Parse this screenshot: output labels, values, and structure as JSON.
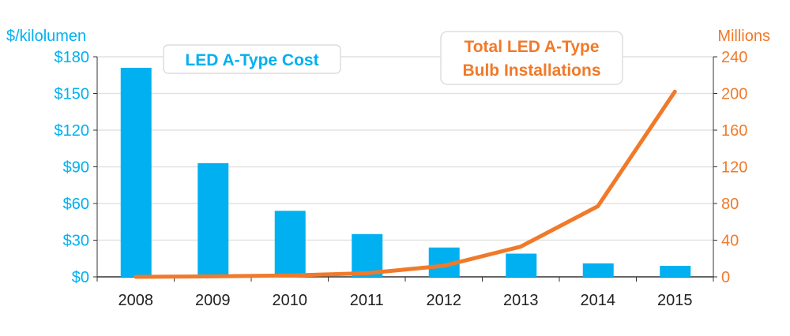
{
  "chart_data": {
    "type": "bar+line",
    "categories": [
      "2008",
      "2009",
      "2010",
      "2011",
      "2012",
      "2013",
      "2014",
      "2015"
    ],
    "series": [
      {
        "name": "LED A-Type Cost",
        "type": "bar",
        "axis": "left",
        "color": "#00B0F0",
        "values": [
          171,
          93,
          54,
          35,
          24,
          19,
          11,
          9
        ]
      },
      {
        "name": "Total LED A-Type Bulb Installations",
        "type": "line",
        "axis": "right",
        "color": "#F07A2A",
        "values": [
          0,
          0.5,
          1.5,
          4,
          12,
          33,
          77,
          202
        ]
      }
    ],
    "left_axis": {
      "label": "$/kilolumen",
      "range": [
        0,
        180
      ],
      "ticks": [
        "$0",
        "$30",
        "$60",
        "$90",
        "$120",
        "$150",
        "$180"
      ],
      "color": "#00B0F0"
    },
    "right_axis": {
      "label": "Millions",
      "range": [
        0,
        240
      ],
      "ticks": [
        "0",
        "40",
        "80",
        "120",
        "160",
        "200",
        "240"
      ],
      "color": "#F07A2A"
    },
    "legend_boxes": {
      "cost": "LED A-Type Cost",
      "installs_line1": "Total LED A-Type",
      "installs_line2": "Bulb Installations"
    },
    "grid": true
  }
}
